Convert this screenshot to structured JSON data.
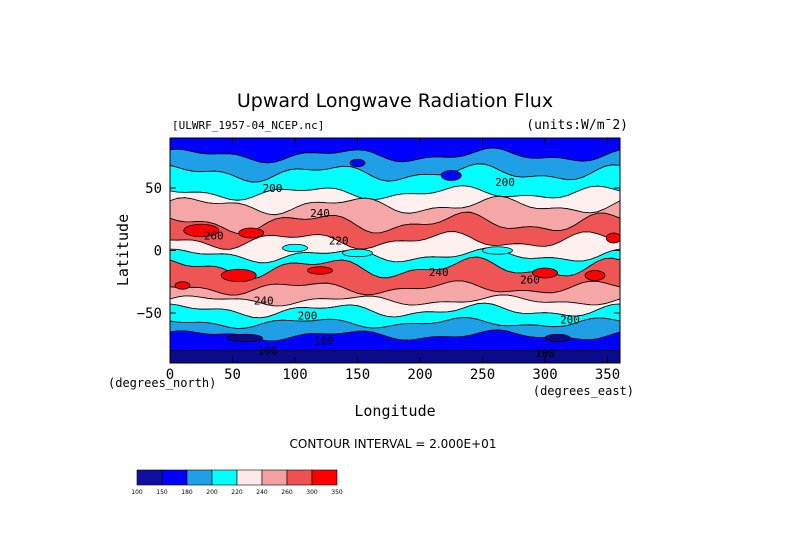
{
  "chart_data": {
    "type": "heatmap",
    "title": "Upward Longwave Radiation Flux",
    "dataset": "[ULWRF_1957-04_NCEP.nc]",
    "units": "(units:W/m¯2)",
    "xlabel": "Longitude",
    "ylabel": "Latitude",
    "x_unit": "(degrees_east)",
    "y_unit": "(degrees_north)",
    "xlim": [
      0,
      360
    ],
    "ylim": [
      -90,
      90
    ],
    "x_ticks": [
      0,
      50,
      100,
      150,
      200,
      250,
      300,
      350
    ],
    "y_ticks": [
      -50,
      0,
      50
    ],
    "contour_interval": "CONTOUR INTERVAL = 2.000E+01",
    "colorbar": {
      "levels": [
        "100",
        "150",
        "180",
        "200",
        "220",
        "240",
        "260",
        "300",
        "350"
      ],
      "colors": [
        "#1010a0",
        "#0000ff",
        "#1fa0e6",
        "#00ffff",
        "#ffe8e8",
        "#f5a0a0",
        "#ef5050",
        "#ff0000"
      ]
    },
    "band_colors": {
      "c100": "#0a0a8a",
      "c150": "#0000ff",
      "c180": "#1fa0e6",
      "c200": "#00ffff",
      "c220": "#fff0f0",
      "c240": "#f5a6a6",
      "c260": "#ef5555",
      "c300": "#ff0000"
    },
    "contour_labels": [
      {
        "text": "200",
        "lon": 82,
        "lat": 50
      },
      {
        "text": "200",
        "lon": 268,
        "lat": 55
      },
      {
        "text": "240",
        "lon": 120,
        "lat": 30
      },
      {
        "text": "260",
        "lon": 35,
        "lat": 12
      },
      {
        "text": "220",
        "lon": 135,
        "lat": 8
      },
      {
        "text": "240",
        "lon": 215,
        "lat": -17
      },
      {
        "text": "260",
        "lon": 288,
        "lat": -23
      },
      {
        "text": "240",
        "lon": 75,
        "lat": -40
      },
      {
        "text": "200",
        "lon": 110,
        "lat": -52
      },
      {
        "text": "200",
        "lon": 320,
        "lat": -55
      },
      {
        "text": "100",
        "lon": 123,
        "lat": -72
      },
      {
        "text": "100",
        "lon": 78,
        "lat": -80
      },
      {
        "text": "100",
        "lon": 300,
        "lat": -82
      }
    ]
  }
}
